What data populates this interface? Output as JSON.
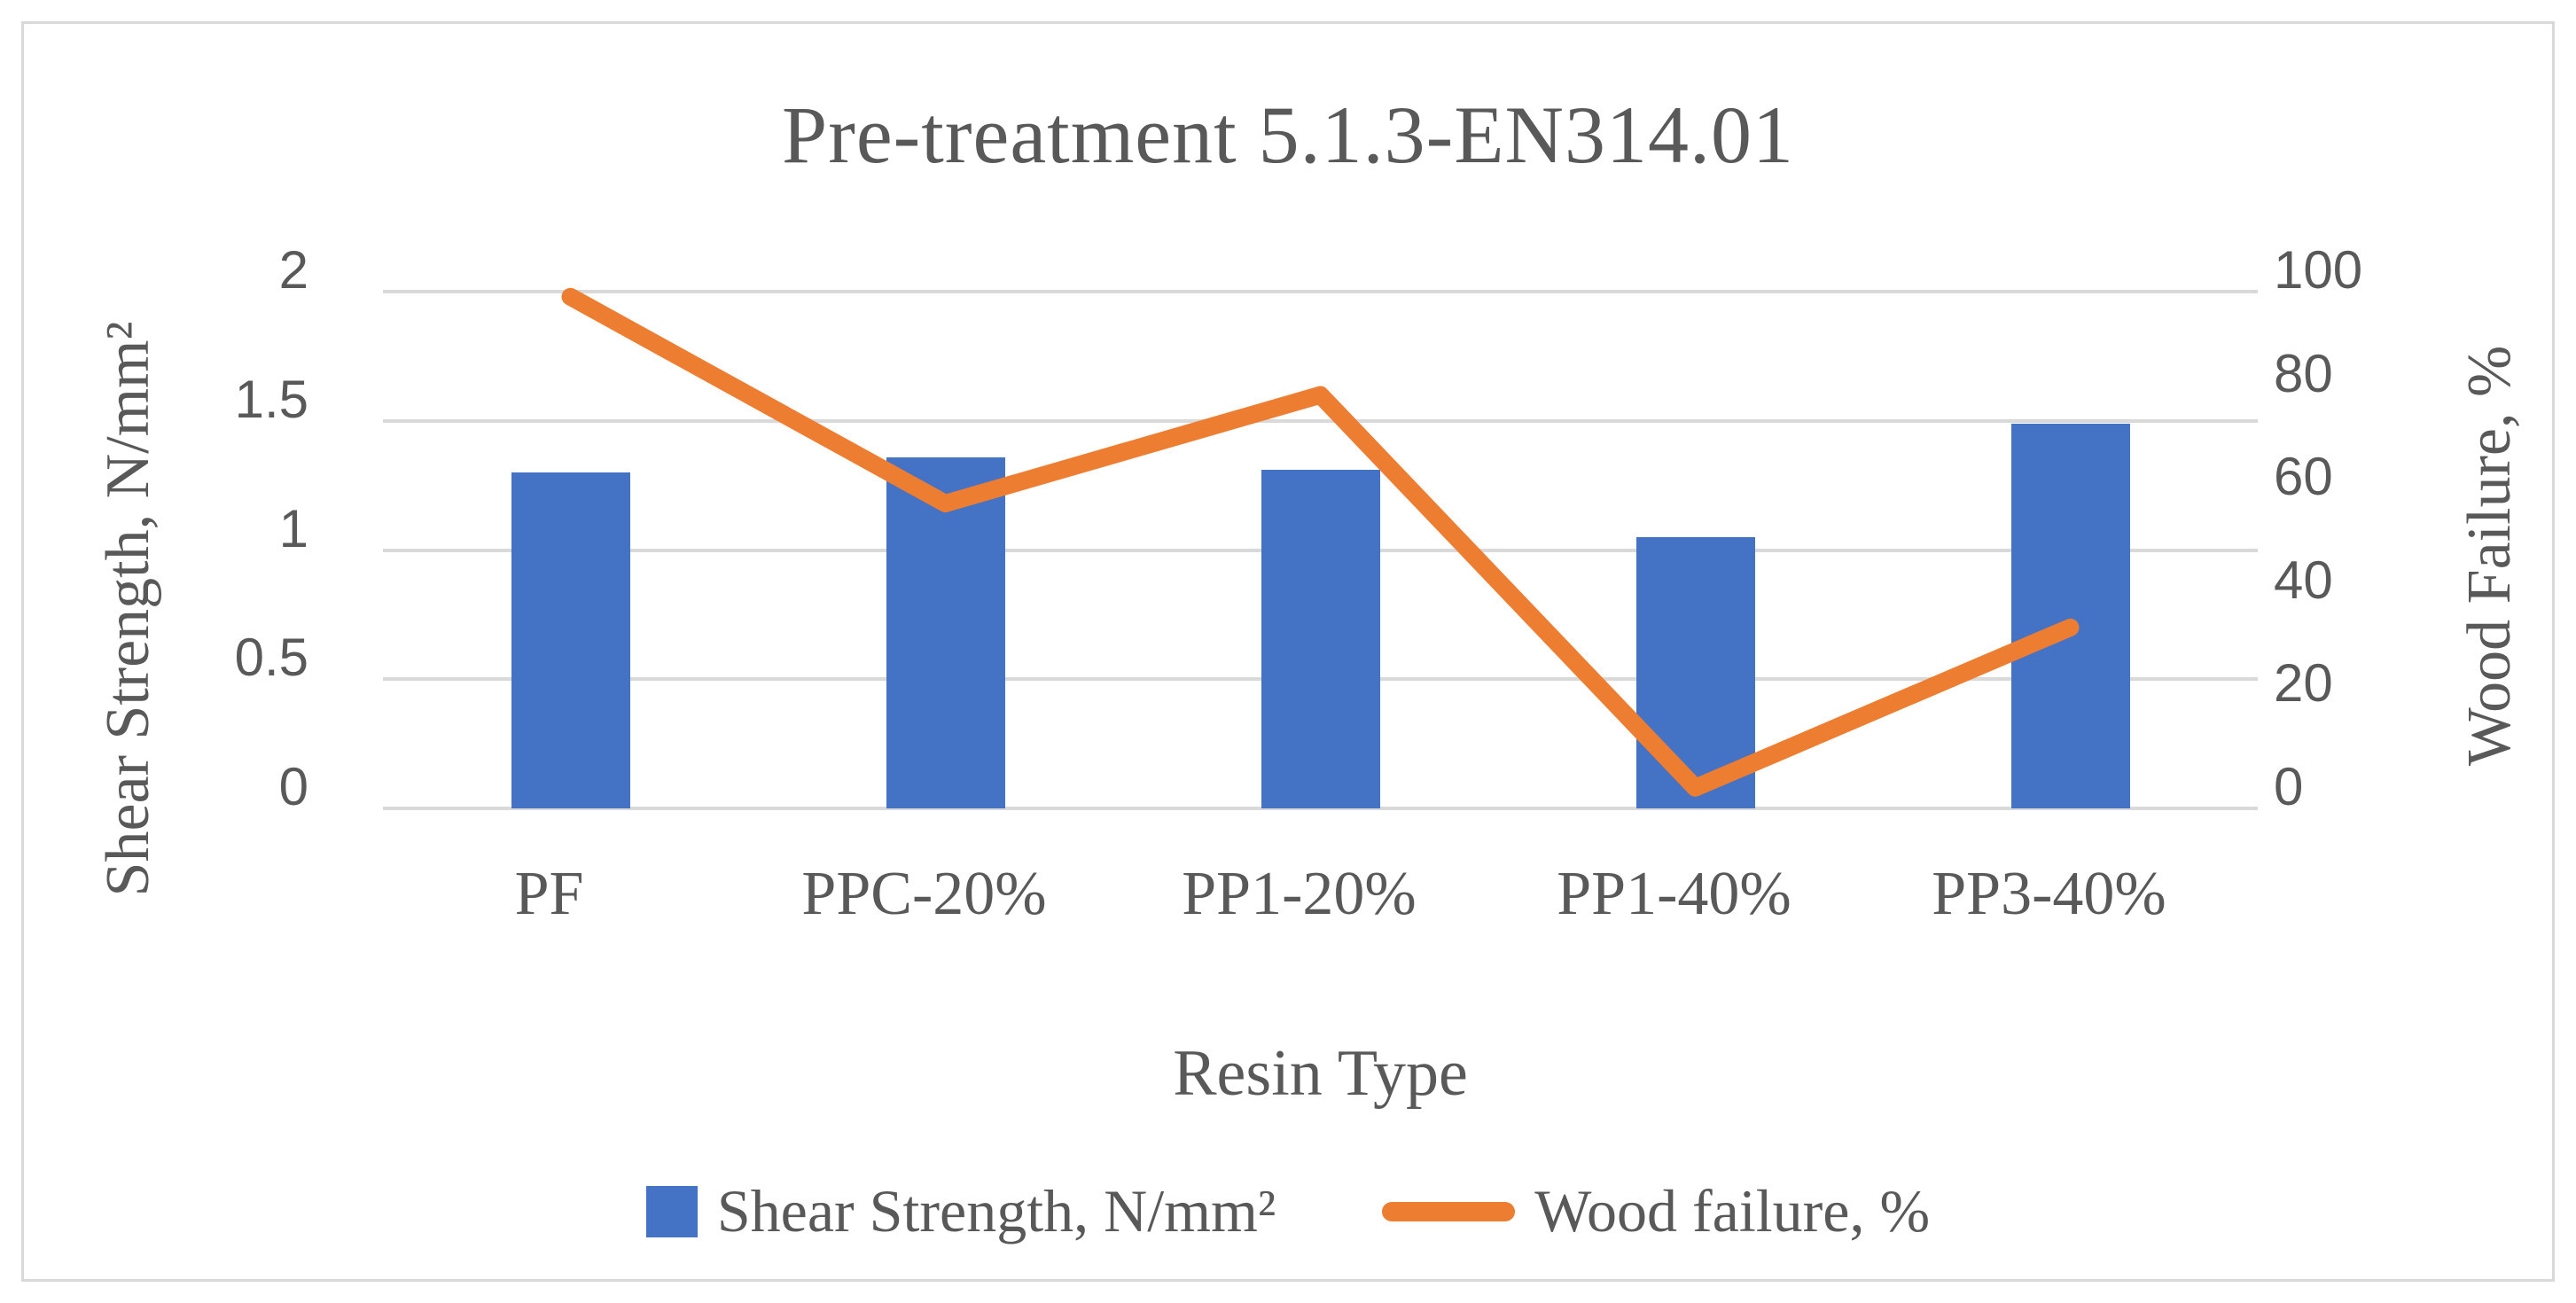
{
  "title": "Pre-treatment 5.1.3-EN314.01",
  "colors": {
    "bar_blue": "#4472C4",
    "line_orange": "#ED7D31",
    "text_gray": "#595959",
    "gridline_gray": "#D9D9D9",
    "border_gray": "#D9D9D9"
  },
  "chart_data": {
    "type": "combo",
    "title": "Pre-treatment 5.1.3-EN314.01",
    "categories": [
      "PF",
      "PPC-20%",
      "PP1-20%",
      "PP1-40%",
      "PP3-40%"
    ],
    "series": [
      {
        "name": "Shear Strength, N/mm²",
        "type": "bar",
        "axis": "left",
        "color": "#4472C4",
        "values": [
          1.3,
          1.36,
          1.31,
          1.05,
          1.49
        ]
      },
      {
        "name": "Wood failure, %",
        "type": "line",
        "axis": "right",
        "color": "#ED7D31",
        "values": [
          99,
          59,
          80,
          4,
          35
        ]
      }
    ],
    "xlabel": "Resin Type",
    "ylabel_left": "Shear Strength, N/mm²",
    "ylabel_right": "Wood Failure, %",
    "ylim_left": [
      0,
      2
    ],
    "ylim_right": [
      0,
      100
    ],
    "yticks_left": {
      "values": [
        0,
        0.5,
        1,
        1.5,
        2
      ],
      "labels": [
        "0",
        "0.5",
        "1",
        "1.5",
        "2"
      ]
    },
    "yticks_right": {
      "values": [
        0,
        20,
        40,
        60,
        80,
        100
      ],
      "labels": [
        "0",
        "20",
        "40",
        "60",
        "80",
        "100"
      ]
    },
    "grid": true,
    "legend_position": "bottom"
  }
}
